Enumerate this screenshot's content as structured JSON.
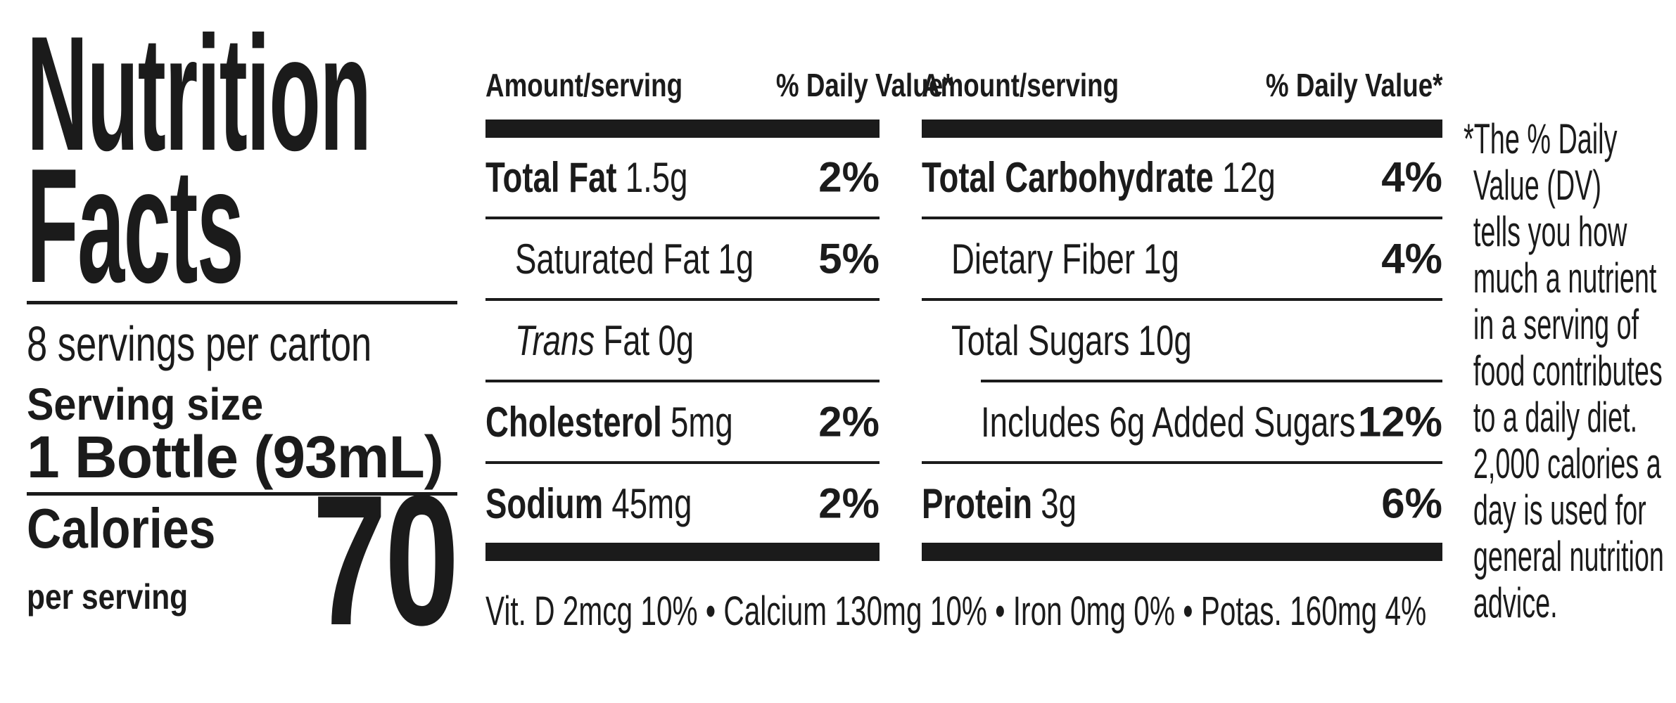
{
  "theme": {
    "background": "#ffffff",
    "ink": "#1b1b1b"
  },
  "label": {
    "title_line1": "Nutrition",
    "title_line2": "Facts",
    "servings_per_carton": "8 servings per carton",
    "serving_size_label": "Serving size",
    "serving_size_value": "1 Bottle (93mL)",
    "calories": {
      "label": "Calories",
      "sublabel": "per serving",
      "value": "70"
    }
  },
  "panel_left": {
    "header": {
      "amount": "Amount/serving",
      "daily_value": "% Daily Value*"
    },
    "rows": [
      {
        "label_bold": "Total Fat",
        "amount": "1.5g",
        "dv": "2%"
      },
      {
        "label": "Saturated Fat",
        "amount": "1g",
        "dv": "5%"
      },
      {
        "label_italic": "Trans",
        "label": "Fat",
        "amount": "0g",
        "dv": ""
      },
      {
        "label_bold": "Cholesterol",
        "amount": "5mg",
        "dv": "2%"
      },
      {
        "label_bold": "Sodium",
        "amount": "45mg",
        "dv": "2%"
      }
    ]
  },
  "panel_right": {
    "header": {
      "amount": "Amount/serving",
      "daily_value": "% Daily Value*"
    },
    "rows": [
      {
        "label_bold": "Total Carbohydrate",
        "amount": "12g",
        "dv": "4%"
      },
      {
        "label": "Dietary Fiber",
        "amount": "1g",
        "dv": "4%"
      },
      {
        "label": "Total Sugars",
        "amount": "10g",
        "dv": ""
      },
      {
        "label": "Includes 6g Added Sugars",
        "amount": "",
        "dv": "12%"
      },
      {
        "label_bold": "Protein",
        "amount": "3g",
        "dv": "6%"
      }
    ]
  },
  "micronutrients": {
    "line": "Vit. D 2mcg 10% • Calcium 130mg 10% • Iron 0mg 0% • Potas. 160mg 4%"
  },
  "footnote": {
    "full_text": "*The % Daily Value (DV) tells you how much a nutrient in a serving of food contributes to a daily diet. 2,000 calories a day is used for general nutrition advice.",
    "lines": [
      "*The % Daily",
      "Value (DV)",
      "tells you how",
      "much a nutrient",
      "in a serving of",
      "food contributes",
      "to a daily diet.",
      "2,000 calories a",
      "day is used for",
      "general nutrition",
      "advice."
    ]
  }
}
